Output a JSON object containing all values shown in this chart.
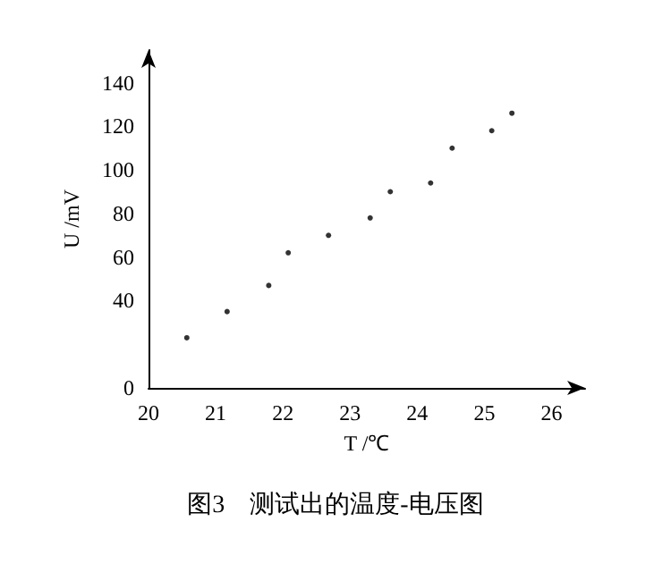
{
  "chart_data": {
    "type": "scatter",
    "xlabel": "T /℃",
    "ylabel": "U /mV",
    "annotations": [
      "图3　测试出的温度-电压图"
    ],
    "x": [
      20.57,
      21.17,
      21.79,
      22.08,
      22.68,
      23.3,
      23.6,
      24.2,
      24.52,
      25.11,
      25.41
    ],
    "series": [
      {
        "color": "#000000",
        "values": [
          23,
          35,
          47,
          62,
          70,
          78,
          90,
          94,
          110,
          118,
          126
        ]
      }
    ],
    "xlim": [
      20,
      26.5
    ],
    "xticks": [
      20,
      21,
      22,
      23,
      24,
      25,
      26
    ],
    "ylim": [
      0,
      155
    ],
    "yticks": [
      0,
      40,
      60,
      80,
      100,
      120,
      140
    ],
    "grid": false,
    "marker": "circle"
  }
}
